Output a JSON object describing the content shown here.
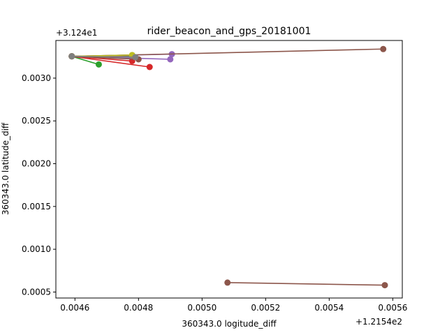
{
  "chart_data": {
    "type": "line",
    "title": "rider_beacon_and_gps_20181001",
    "xlabel": "360343.0 logitude_diff",
    "ylabel": "360343.0 latitude_diff",
    "x_offset_label": "+1.2154e2",
    "y_offset_label": "+3.124e1",
    "xlim": [
      0.00454,
      0.00563
    ],
    "ylim": [
      0.00043,
      0.00344
    ],
    "xticks": [
      0.0046,
      0.0048,
      0.005,
      0.0052,
      0.0054,
      0.0056
    ],
    "xtick_labels": [
      "0.0046",
      "0.0048",
      "0.0050",
      "0.0052",
      "0.0054",
      "0.0056"
    ],
    "yticks": [
      0.0005,
      0.001,
      0.0015,
      0.002,
      0.0025,
      0.003
    ],
    "ytick_labels": [
      "0.0005",
      "0.0010",
      "0.0015",
      "0.0020",
      "0.0025",
      "0.0030"
    ],
    "grid": false,
    "series": [
      {
        "color": "#1f77b4",
        "points": [
          [
            0.00459,
            0.003255
          ],
          [
            0.00478,
            0.003255
          ]
        ]
      },
      {
        "color": "#ff7f0e",
        "points": [
          [
            0.00459,
            0.003255
          ],
          [
            0.00478,
            0.003265
          ]
        ]
      },
      {
        "color": "#2ca02c",
        "points": [
          [
            0.00459,
            0.003255
          ],
          [
            0.004675,
            0.00316
          ]
        ]
      },
      {
        "color": "#d62728",
        "points": [
          [
            0.00459,
            0.003255
          ],
          [
            0.00478,
            0.0032
          ]
        ]
      },
      {
        "color": "#d62728",
        "points": [
          [
            0.00459,
            0.003255
          ],
          [
            0.004835,
            0.00313
          ]
        ]
      },
      {
        "color": "#9467bd",
        "points": [
          [
            0.00459,
            0.003255
          ],
          [
            0.0049,
            0.00322
          ]
        ]
      },
      {
        "color": "#9467bd",
        "points": [
          [
            0.00459,
            0.003255
          ],
          [
            0.004905,
            0.00328
          ]
        ]
      },
      {
        "color": "#8c564b",
        "points": [
          [
            0.00459,
            0.003255
          ],
          [
            0.0048,
            0.00322
          ]
        ]
      },
      {
        "color": "#8c564b",
        "points": [
          [
            0.00459,
            0.003255
          ],
          [
            0.00557,
            0.00334
          ]
        ]
      },
      {
        "color": "#8c564b",
        "points": [
          [
            0.00508,
            0.00061
          ],
          [
            0.005575,
            0.00058
          ]
        ]
      },
      {
        "color": "#bcbd22",
        "points": [
          [
            0.00459,
            0.003255
          ],
          [
            0.00478,
            0.00327
          ]
        ]
      },
      {
        "color": "#7f7f7f",
        "points": [
          [
            0.00459,
            0.003255
          ],
          [
            0.00479,
            0.003245
          ]
        ]
      }
    ]
  }
}
